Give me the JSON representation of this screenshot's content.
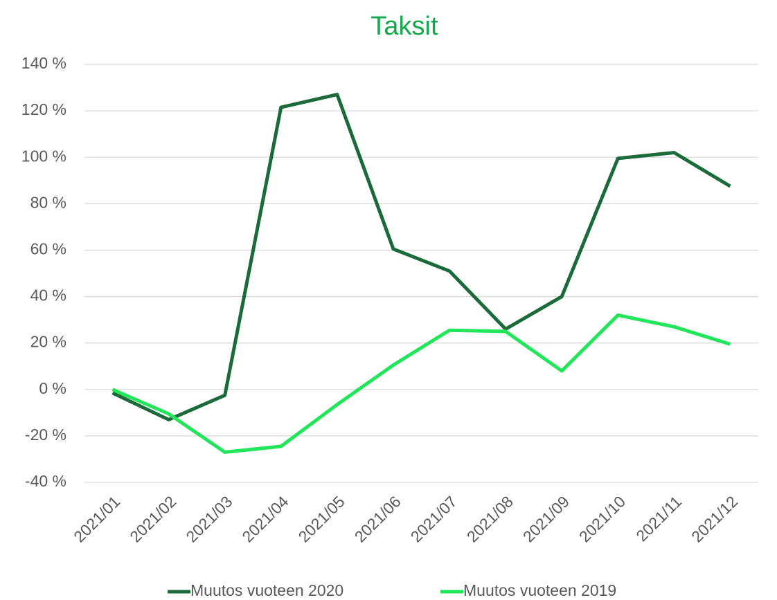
{
  "chart_data": {
    "type": "line",
    "title": "Taksit",
    "categories": [
      "2021/01",
      "2021/02",
      "2021/03",
      "2021/04",
      "2021/05",
      "2021/06",
      "2021/07",
      "2021/08",
      "2021/09",
      "2021/10",
      "2021/11",
      "2021/12"
    ],
    "series": [
      {
        "name": "Muutos vuoteen 2020",
        "color": "#1b6b3a",
        "values": [
          -1.5,
          -13,
          -2.5,
          121.5,
          127,
          60.5,
          51,
          26,
          40,
          99.5,
          102,
          87.5
        ]
      },
      {
        "name": "Muutos vuoteen 2019",
        "color": "#22e65a",
        "values": [
          0,
          -10.5,
          -27,
          -24.5,
          -6.5,
          10.5,
          25.5,
          25,
          8,
          32,
          27,
          19.5
        ]
      }
    ],
    "ylim": [
      -40,
      140
    ],
    "yticks": [
      {
        "value": -40,
        "label": "-40 %"
      },
      {
        "value": -20,
        "label": "-20 %"
      },
      {
        "value": 0,
        "label": "0 %"
      },
      {
        "value": 20,
        "label": "20 %"
      },
      {
        "value": 40,
        "label": "40 %"
      },
      {
        "value": 60,
        "label": "60 %"
      },
      {
        "value": 80,
        "label": "80 %"
      },
      {
        "value": 100,
        "label": "100 %"
      },
      {
        "value": 120,
        "label": "120 %"
      },
      {
        "value": 140,
        "label": "140 %"
      }
    ],
    "grid": true,
    "legend": "bottom"
  }
}
